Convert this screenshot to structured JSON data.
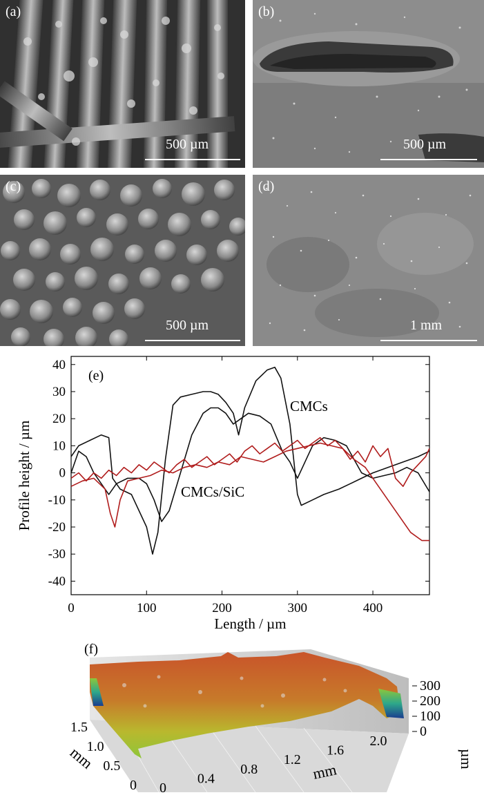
{
  "panels": [
    {
      "label": "(a)",
      "scale": "500 µm"
    },
    {
      "label": "(b)",
      "scale": "500 µm"
    },
    {
      "label": "(c)",
      "scale": "500 µm"
    },
    {
      "label": "(d)",
      "scale": "1 mm"
    }
  ],
  "chart_data": [
    {
      "type": "line",
      "panel_label": "(e)",
      "xlabel": "Length / µm",
      "ylabel": "Profile height / µm",
      "xlim": [
        0,
        475
      ],
      "ylim": [
        -45,
        43
      ],
      "xticks": [
        0,
        100,
        200,
        300,
        400
      ],
      "yticks": [
        -40,
        -30,
        -20,
        -10,
        0,
        10,
        20,
        30,
        40
      ],
      "annotations": [
        "CMCs",
        "CMCs/SiC"
      ],
      "colors": {
        "CMCs": "#111111",
        "CMCs/SiC": "#b01c1c"
      },
      "series": [
        {
          "color": "#111111",
          "x": [
            0,
            10,
            25,
            40,
            50,
            55,
            65,
            80,
            100,
            108,
            115,
            125,
            135,
            145,
            160,
            175,
            185,
            195,
            205,
            215,
            222,
            230,
            245,
            260,
            270,
            278,
            290,
            300,
            305,
            320,
            335,
            355,
            370,
            385,
            400,
            420,
            440,
            460,
            475
          ],
          "y": [
            6,
            10,
            12,
            14,
            13,
            -2,
            -6,
            -8,
            -20,
            -30,
            -22,
            5,
            25,
            28,
            29,
            30,
            30,
            29,
            26,
            22,
            14,
            24,
            34,
            38,
            39,
            35,
            18,
            -8,
            -12,
            -10,
            -8,
            -6,
            -4,
            -2,
            0,
            2,
            4,
            6,
            8
          ]
        },
        {
          "color": "#111111",
          "x": [
            0,
            10,
            20,
            30,
            40,
            50,
            60,
            75,
            90,
            100,
            110,
            120,
            130,
            145,
            160,
            175,
            185,
            195,
            205,
            215,
            225,
            235,
            250,
            265,
            280,
            290,
            300,
            310,
            320,
            335,
            350,
            365,
            375,
            385,
            400,
            415,
            430,
            445,
            460,
            475
          ],
          "y": [
            0,
            8,
            6,
            0,
            -4,
            -8,
            -4,
            -2,
            -2,
            -4,
            -10,
            -18,
            -14,
            0,
            14,
            22,
            24,
            24,
            22,
            18,
            20,
            22,
            21,
            18,
            8,
            4,
            -2,
            4,
            10,
            13,
            12,
            10,
            5,
            0,
            -2,
            -1,
            0,
            2,
            0,
            -7
          ]
        },
        {
          "color": "#b01c1c",
          "x": [
            0,
            15,
            30,
            45,
            52,
            58,
            65,
            75,
            90,
            105,
            120,
            135,
            150,
            165,
            180,
            195,
            210,
            225,
            240,
            255,
            270,
            285,
            300,
            315,
            330,
            345,
            360,
            375,
            390,
            405,
            420,
            435,
            450,
            465,
            475
          ],
          "y": [
            -5,
            -3,
            -2,
            -6,
            -15,
            -20,
            -10,
            -3,
            -2,
            -1,
            1,
            0,
            2,
            3,
            2,
            4,
            3,
            6,
            5,
            4,
            6,
            8,
            9,
            10,
            11,
            10,
            9,
            5,
            2,
            -4,
            -10,
            -16,
            -22,
            -25,
            -25
          ]
        },
        {
          "color": "#b01c1c",
          "x": [
            0,
            10,
            20,
            30,
            40,
            50,
            60,
            70,
            80,
            90,
            100,
            110,
            120,
            130,
            140,
            150,
            160,
            170,
            180,
            190,
            200,
            210,
            220,
            230,
            240,
            250,
            260,
            270,
            280,
            290,
            300,
            310,
            320,
            330,
            340,
            350,
            360,
            370,
            380,
            390,
            400,
            410,
            420,
            430,
            440,
            450,
            460,
            470,
            475
          ],
          "y": [
            -2,
            0,
            -3,
            0,
            -2,
            1,
            -1,
            2,
            0,
            3,
            1,
            4,
            2,
            0,
            3,
            5,
            2,
            4,
            6,
            3,
            5,
            7,
            4,
            8,
            10,
            7,
            9,
            11,
            8,
            10,
            12,
            9,
            11,
            13,
            10,
            12,
            9,
            5,
            8,
            4,
            10,
            6,
            9,
            -2,
            -5,
            0,
            3,
            6,
            9
          ]
        }
      ]
    },
    {
      "type": "surface",
      "panel_label": "(f)",
      "x_axis_label": "mm",
      "x_ticks": [
        "0",
        "0.4",
        "0.8",
        "1.2",
        "1.6",
        "2.0"
      ],
      "y_axis_label": "mm",
      "y_ticks": [
        "0",
        "0.5",
        "1.0",
        "1.5"
      ],
      "z_axis_label": "µm",
      "z_ticks": [
        "0",
        "100",
        "200",
        "300"
      ]
    }
  ]
}
